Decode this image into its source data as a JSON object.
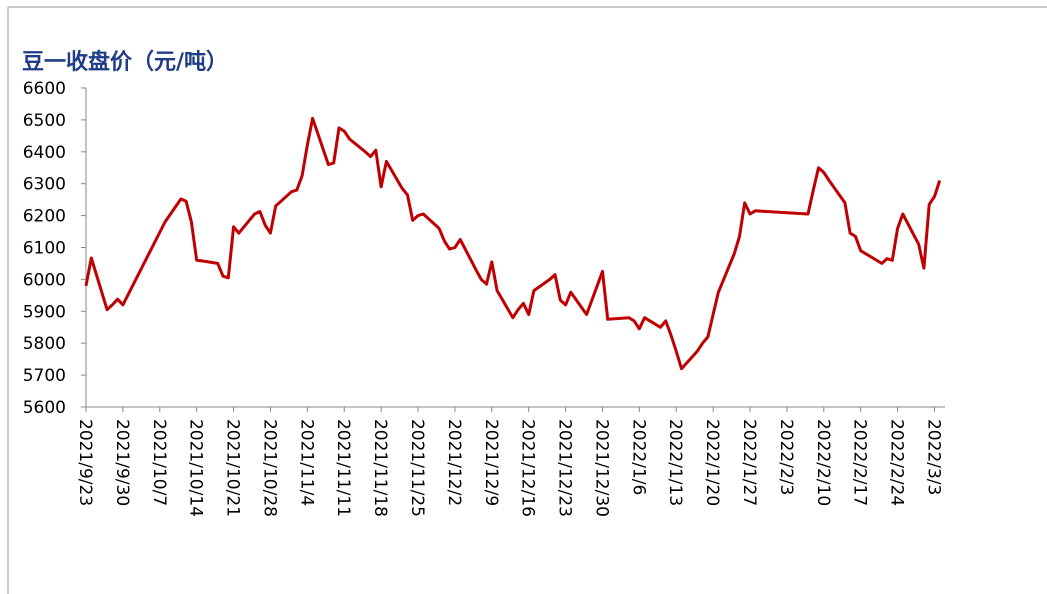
{
  "chart_data": {
    "type": "line",
    "title": "豆一收盘价（元/吨）",
    "x": [
      "2021/9/23",
      "2021/9/24",
      "2021/9/27",
      "2021/9/28",
      "2021/9/29",
      "2021/9/30",
      "2021/10/8",
      "2021/10/11",
      "2021/10/12",
      "2021/10/13",
      "2021/10/14",
      "2021/10/15",
      "2021/10/18",
      "2021/10/19",
      "2021/10/20",
      "2021/10/21",
      "2021/10/22",
      "2021/10/25",
      "2021/10/26",
      "2021/10/27",
      "2021/10/28",
      "2021/10/29",
      "2021/11/1",
      "2021/11/2",
      "2021/11/3",
      "2021/11/4",
      "2021/11/5",
      "2021/11/8",
      "2021/11/9",
      "2021/11/10",
      "2021/11/11",
      "2021/11/12",
      "2021/11/15",
      "2021/11/16",
      "2021/11/17",
      "2021/11/18",
      "2021/11/19",
      "2021/11/22",
      "2021/11/23",
      "2021/11/24",
      "2021/11/25",
      "2021/11/26",
      "2021/11/29",
      "2021/11/30",
      "2021/12/1",
      "2021/12/2",
      "2021/12/3",
      "2021/12/6",
      "2021/12/7",
      "2021/12/8",
      "2021/12/9",
      "2021/12/10",
      "2021/12/13",
      "2021/12/14",
      "2021/12/15",
      "2021/12/16",
      "2021/12/17",
      "2021/12/20",
      "2021/12/21",
      "2021/12/22",
      "2021/12/23",
      "2021/12/24",
      "2021/12/27",
      "2021/12/28",
      "2021/12/29",
      "2021/12/30",
      "2021/12/31",
      "2022/1/4",
      "2022/1/5",
      "2022/1/6",
      "2022/1/7",
      "2022/1/10",
      "2022/1/11",
      "2022/1/12",
      "2022/1/13",
      "2022/1/14",
      "2022/1/17",
      "2022/1/18",
      "2022/1/19",
      "2022/1/20",
      "2022/1/21",
      "2022/1/24",
      "2022/1/25",
      "2022/1/26",
      "2022/1/27",
      "2022/1/28",
      "2022/2/7",
      "2022/2/8",
      "2022/2/9",
      "2022/2/10",
      "2022/2/11",
      "2022/2/14",
      "2022/2/15",
      "2022/2/16",
      "2022/2/17",
      "2022/2/18",
      "2022/2/21",
      "2022/2/22",
      "2022/2/23",
      "2022/2/24",
      "2022/2/25",
      "2022/2/28",
      "2022/3/1",
      "2022/3/2",
      "2022/3/3",
      "2022/3/4"
    ],
    "series": [
      {
        "name": "豆一收盘价",
        "color": "#c00000",
        "values": [
          5980,
          6067,
          5905,
          5920,
          5938,
          5920,
          6180,
          6252,
          6245,
          6180,
          6060,
          6058,
          6050,
          6010,
          6005,
          6165,
          6145,
          6205,
          6213,
          6170,
          6145,
          6230,
          6275,
          6280,
          6325,
          6420,
          6505,
          6360,
          6365,
          6475,
          6465,
          6440,
          6400,
          6385,
          6405,
          6290,
          6370,
          6285,
          6265,
          6185,
          6200,
          6205,
          6160,
          6120,
          6095,
          6100,
          6125,
          6030,
          6000,
          5985,
          6055,
          5965,
          5880,
          5905,
          5925,
          5890,
          5965,
          6000,
          6015,
          5935,
          5920,
          5960,
          5890,
          5935,
          5980,
          6025,
          5875,
          5880,
          5870,
          5845,
          5880,
          5850,
          5870,
          5825,
          5775,
          5720,
          5775,
          5800,
          5820,
          5890,
          5960,
          6080,
          6135,
          6240,
          6205,
          6215,
          6205,
          6280,
          6350,
          6335,
          6310,
          6240,
          6145,
          6135,
          6090,
          6080,
          6050,
          6065,
          6060,
          6160,
          6205,
          6110,
          6035,
          6235,
          6260,
          6310
        ]
      }
    ],
    "xlim": [
      "2021/9/23",
      "2022/3/5"
    ],
    "xticks": [
      "2021/9/23",
      "2021/9/30",
      "2021/10/7",
      "2021/10/14",
      "2021/10/21",
      "2021/10/28",
      "2021/11/4",
      "2021/11/11",
      "2021/11/18",
      "2021/11/25",
      "2021/12/2",
      "2021/12/9",
      "2021/12/16",
      "2021/12/23",
      "2021/12/30",
      "2022/1/6",
      "2022/1/13",
      "2022/1/20",
      "2022/1/27",
      "2022/2/3",
      "2022/2/10",
      "2022/2/17",
      "2022/2/24",
      "2022/3/3"
    ],
    "ylim": [
      5600,
      6600
    ],
    "yticks": [
      5600,
      5700,
      5800,
      5900,
      6000,
      6100,
      6200,
      6300,
      6400,
      6500,
      6600
    ]
  }
}
